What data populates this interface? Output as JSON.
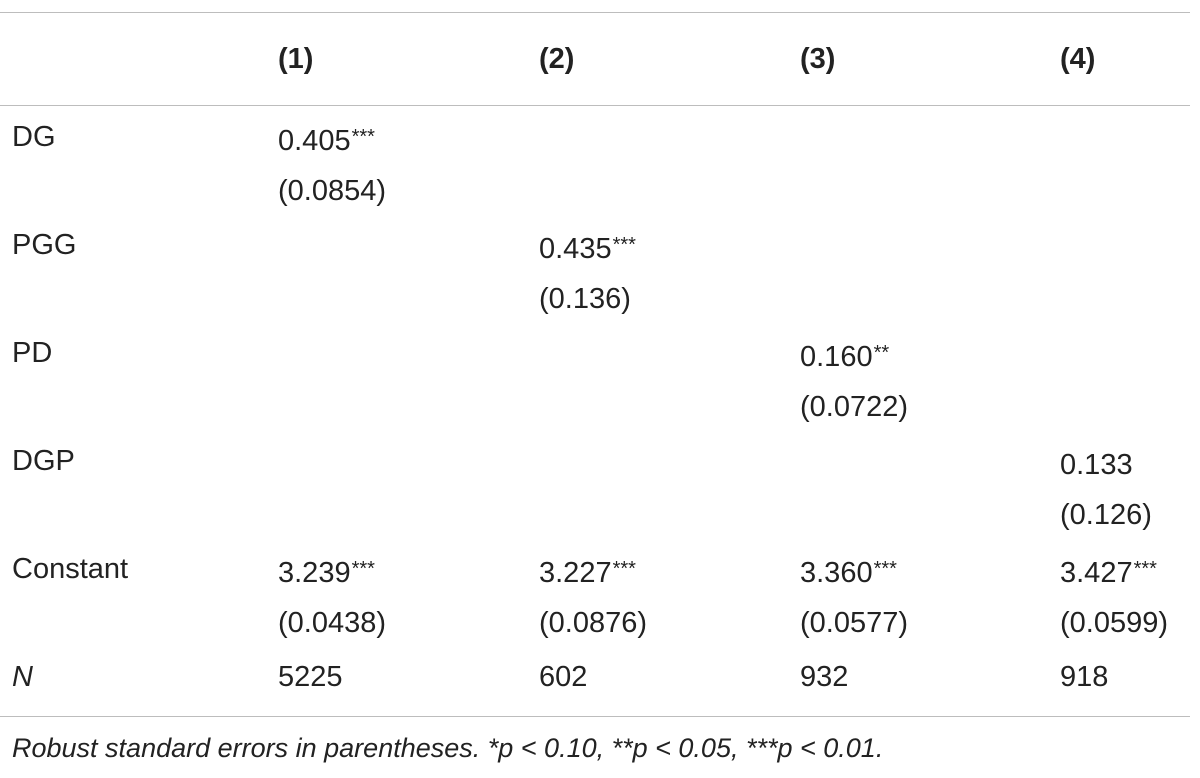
{
  "table": {
    "columns": [
      "(1)",
      "(2)",
      "(3)",
      "(4)"
    ],
    "rows": [
      {
        "label": "DG",
        "coef": [
          "0.405",
          "",
          "",
          ""
        ],
        "stars": [
          "***",
          "",
          "",
          ""
        ],
        "se": [
          "(0.0854)",
          "",
          "",
          ""
        ]
      },
      {
        "label": "PGG",
        "coef": [
          "",
          "0.435",
          "",
          ""
        ],
        "stars": [
          "",
          "***",
          "",
          ""
        ],
        "se": [
          "",
          "(0.136)",
          "",
          ""
        ]
      },
      {
        "label": "PD",
        "coef": [
          "",
          "",
          "0.160",
          ""
        ],
        "stars": [
          "",
          "",
          "**",
          ""
        ],
        "se": [
          "",
          "",
          "(0.0722)",
          ""
        ]
      },
      {
        "label": "DGP",
        "coef": [
          "",
          "",
          "",
          "0.133"
        ],
        "stars": [
          "",
          "",
          "",
          ""
        ],
        "se": [
          "",
          "",
          "",
          "(0.126)"
        ]
      },
      {
        "label": "Constant",
        "coef": [
          "3.239",
          "3.227",
          "3.360",
          "3.427"
        ],
        "stars": [
          "***",
          "***",
          "***",
          "***"
        ],
        "se": [
          "(0.0438)",
          "(0.0876)",
          "(0.0577)",
          "(0.0599)"
        ]
      }
    ],
    "n_row": {
      "label": "N",
      "values": [
        "5225",
        "602",
        "932",
        "918"
      ]
    },
    "note": "Robust standard errors in parentheses. *p < 0.10, **p < 0.05, ***p < 0.01."
  }
}
